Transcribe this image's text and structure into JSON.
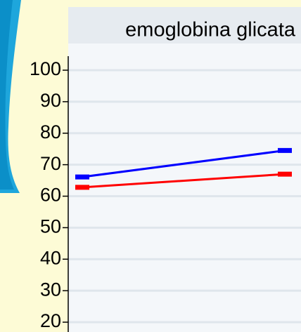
{
  "chart_data": {
    "type": "line",
    "title": "emoglobina glicata",
    "categories": [
      null,
      null
    ],
    "series": [
      {
        "name": null,
        "color": "#ff0000",
        "values": [
          62.8,
          67
        ]
      },
      {
        "name": null,
        "color": "#0000ff",
        "values": [
          66.1,
          74.5
        ]
      }
    ],
    "ylim": [
      20,
      100
    ],
    "yticks": [
      20,
      30,
      40,
      50,
      60,
      70,
      80,
      90,
      100
    ],
    "grid": true
  }
}
